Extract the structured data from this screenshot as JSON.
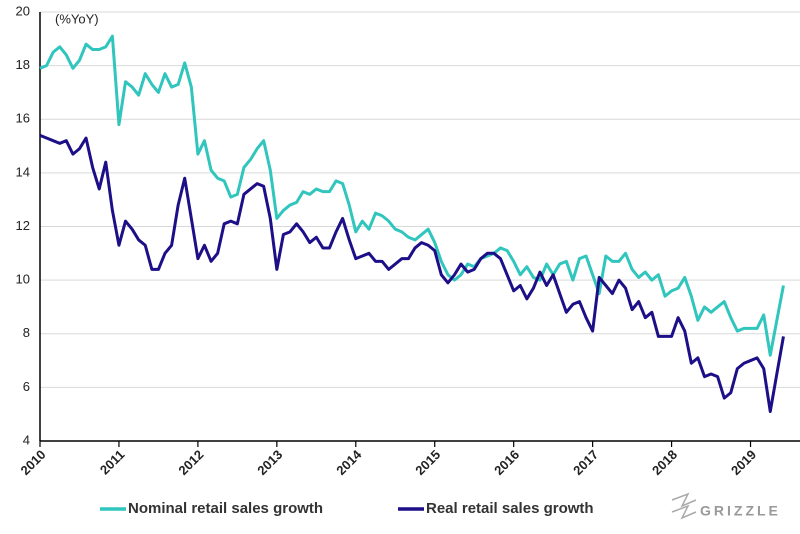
{
  "chart_data": {
    "type": "line",
    "annotation": "(%YoY)",
    "logo": "GRIZZLE",
    "xlim": [
      2010,
      2019.5
    ],
    "xticks": [
      2010,
      2011,
      2012,
      2013,
      2014,
      2015,
      2016,
      2017,
      2018,
      2019
    ],
    "ylim": [
      4,
      20
    ],
    "yticks": [
      4,
      6,
      8,
      10,
      12,
      14,
      16,
      18,
      20
    ],
    "grid": true,
    "legend": "bottom",
    "x": [
      2010,
      2010.083,
      2010.167,
      2010.25,
      2010.333,
      2010.417,
      2010.5,
      2010.583,
      2010.667,
      2010.75,
      2010.833,
      2010.917,
      2011,
      2011.083,
      2011.167,
      2011.25,
      2011.333,
      2011.417,
      2011.5,
      2011.583,
      2011.667,
      2011.75,
      2011.833,
      2011.917,
      2012,
      2012.083,
      2012.167,
      2012.25,
      2012.333,
      2012.417,
      2012.5,
      2012.583,
      2012.667,
      2012.75,
      2012.833,
      2012.917,
      2013,
      2013.083,
      2013.167,
      2013.25,
      2013.333,
      2013.417,
      2013.5,
      2013.583,
      2013.667,
      2013.75,
      2013.833,
      2013.917,
      2014,
      2014.083,
      2014.167,
      2014.25,
      2014.333,
      2014.417,
      2014.5,
      2014.583,
      2014.667,
      2014.75,
      2014.833,
      2014.917,
      2015,
      2015.083,
      2015.167,
      2015.25,
      2015.333,
      2015.417,
      2015.5,
      2015.583,
      2015.667,
      2015.75,
      2015.833,
      2015.917,
      2016,
      2016.083,
      2016.167,
      2016.25,
      2016.333,
      2016.417,
      2016.5,
      2016.583,
      2016.667,
      2016.75,
      2016.833,
      2016.917,
      2017,
      2017.083,
      2017.167,
      2017.25,
      2017.333,
      2017.417,
      2017.5,
      2017.583,
      2017.667,
      2017.75,
      2017.833,
      2017.917,
      2018,
      2018.083,
      2018.167,
      2018.25,
      2018.333,
      2018.417,
      2018.5,
      2018.583,
      2018.667,
      2018.75,
      2018.833,
      2018.917,
      2019,
      2019.083,
      2019.167,
      2019.25,
      2019.333,
      2019.417
    ],
    "series": [
      {
        "name": "Nominal retail sales growth",
        "color": "#30c5bd",
        "values": [
          17.9,
          18.0,
          18.5,
          18.7,
          18.4,
          17.9,
          18.2,
          18.8,
          18.6,
          18.6,
          18.7,
          19.1,
          15.8,
          17.4,
          17.2,
          16.9,
          17.7,
          17.3,
          17.0,
          17.7,
          17.2,
          17.3,
          18.1,
          17.2,
          14.7,
          15.2,
          14.1,
          13.8,
          13.7,
          13.1,
          13.2,
          14.2,
          14.5,
          14.9,
          15.2,
          14.1,
          12.3,
          12.6,
          12.8,
          12.9,
          13.3,
          13.2,
          13.4,
          13.3,
          13.3,
          13.7,
          13.6,
          12.8,
          11.8,
          12.2,
          11.9,
          12.5,
          12.4,
          12.2,
          11.9,
          11.8,
          11.6,
          11.5,
          11.7,
          11.9,
          11.4,
          10.7,
          10.2,
          10.0,
          10.2,
          10.6,
          10.5,
          10.8,
          10.9,
          11.0,
          11.2,
          11.1,
          10.7,
          10.2,
          10.5,
          10.1,
          10.0,
          10.6,
          10.2,
          10.6,
          10.7,
          10.0,
          10.8,
          10.9,
          10.2,
          9.5,
          10.9,
          10.7,
          10.7,
          11.0,
          10.4,
          10.1,
          10.3,
          10.0,
          10.2,
          9.4,
          9.6,
          9.7,
          10.1,
          9.4,
          8.5,
          9.0,
          8.8,
          9.0,
          9.2,
          8.6,
          8.1,
          8.2,
          8.2,
          8.2,
          8.7,
          7.2,
          8.5,
          9.8
        ]
      },
      {
        "name": "Real retail sales growth",
        "color": "#1c0f87",
        "values": [
          15.4,
          15.3,
          15.2,
          15.1,
          15.2,
          14.7,
          14.9,
          15.3,
          14.2,
          13.4,
          14.4,
          12.6,
          11.3,
          12.2,
          11.9,
          11.5,
          11.3,
          10.4,
          10.4,
          11.0,
          11.3,
          12.8,
          13.8,
          12.3,
          10.8,
          11.3,
          10.7,
          11.0,
          12.1,
          12.2,
          12.1,
          13.2,
          13.4,
          13.6,
          13.5,
          12.3,
          10.4,
          11.7,
          11.8,
          12.1,
          11.8,
          11.4,
          11.6,
          11.2,
          11.2,
          11.8,
          12.3,
          11.5,
          10.8,
          10.9,
          11.0,
          10.7,
          10.7,
          10.4,
          10.6,
          10.8,
          10.8,
          11.2,
          11.4,
          11.3,
          11.1,
          10.2,
          9.9,
          10.2,
          10.6,
          10.3,
          10.4,
          10.8,
          11.0,
          11.0,
          10.8,
          10.2,
          9.6,
          9.8,
          9.3,
          9.7,
          10.3,
          9.8,
          10.2,
          9.5,
          8.8,
          9.1,
          9.2,
          8.6,
          8.1,
          10.1,
          9.8,
          9.5,
          10.0,
          9.7,
          8.9,
          9.2,
          8.6,
          8.8,
          7.9,
          7.9,
          7.9,
          8.6,
          8.1,
          6.9,
          7.1,
          6.4,
          6.5,
          6.4,
          5.6,
          5.8,
          6.7,
          6.9,
          7.0,
          7.1,
          6.7,
          5.1,
          6.5,
          7.9
        ]
      }
    ]
  }
}
